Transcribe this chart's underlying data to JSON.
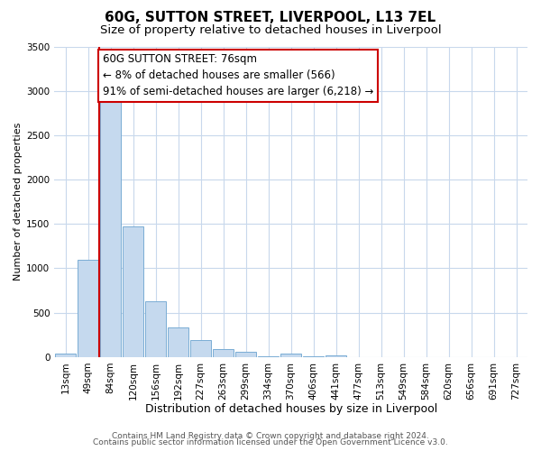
{
  "title": "60G, SUTTON STREET, LIVERPOOL, L13 7EL",
  "subtitle": "Size of property relative to detached houses in Liverpool",
  "xlabel": "Distribution of detached houses by size in Liverpool",
  "ylabel": "Number of detached properties",
  "bin_labels": [
    "13sqm",
    "49sqm",
    "84sqm",
    "120sqm",
    "156sqm",
    "192sqm",
    "227sqm",
    "263sqm",
    "299sqm",
    "334sqm",
    "370sqm",
    "406sqm",
    "441sqm",
    "477sqm",
    "513sqm",
    "549sqm",
    "584sqm",
    "620sqm",
    "656sqm",
    "691sqm",
    "727sqm"
  ],
  "bar_values": [
    40,
    1100,
    2870,
    1470,
    630,
    330,
    195,
    95,
    55,
    10,
    40,
    10,
    15,
    0,
    0,
    0,
    0,
    0,
    0,
    0,
    0
  ],
  "bar_face_color": "#c5d9ee",
  "bar_edge_color": "#7aadd4",
  "vline_color": "#cc0000",
  "vline_x_index": 2,
  "annotation_box_text": "60G SUTTON STREET: 76sqm\n← 8% of detached houses are smaller (566)\n91% of semi-detached houses are larger (6,218) →",
  "annotation_box_facecolor": "#ffffff",
  "annotation_box_edgecolor": "#cc0000",
  "ylim": [
    0,
    3500
  ],
  "yticks": [
    0,
    500,
    1000,
    1500,
    2000,
    2500,
    3000,
    3500
  ],
  "footnote1": "Contains HM Land Registry data © Crown copyright and database right 2024.",
  "footnote2": "Contains public sector information licensed under the Open Government Licence v3.0.",
  "background_color": "#ffffff",
  "grid_color": "#c8d8ec",
  "title_fontsize": 11,
  "subtitle_fontsize": 9.5,
  "xlabel_fontsize": 9,
  "ylabel_fontsize": 8,
  "tick_fontsize": 7.5,
  "annotation_fontsize": 8.5,
  "footnote_fontsize": 6.5
}
